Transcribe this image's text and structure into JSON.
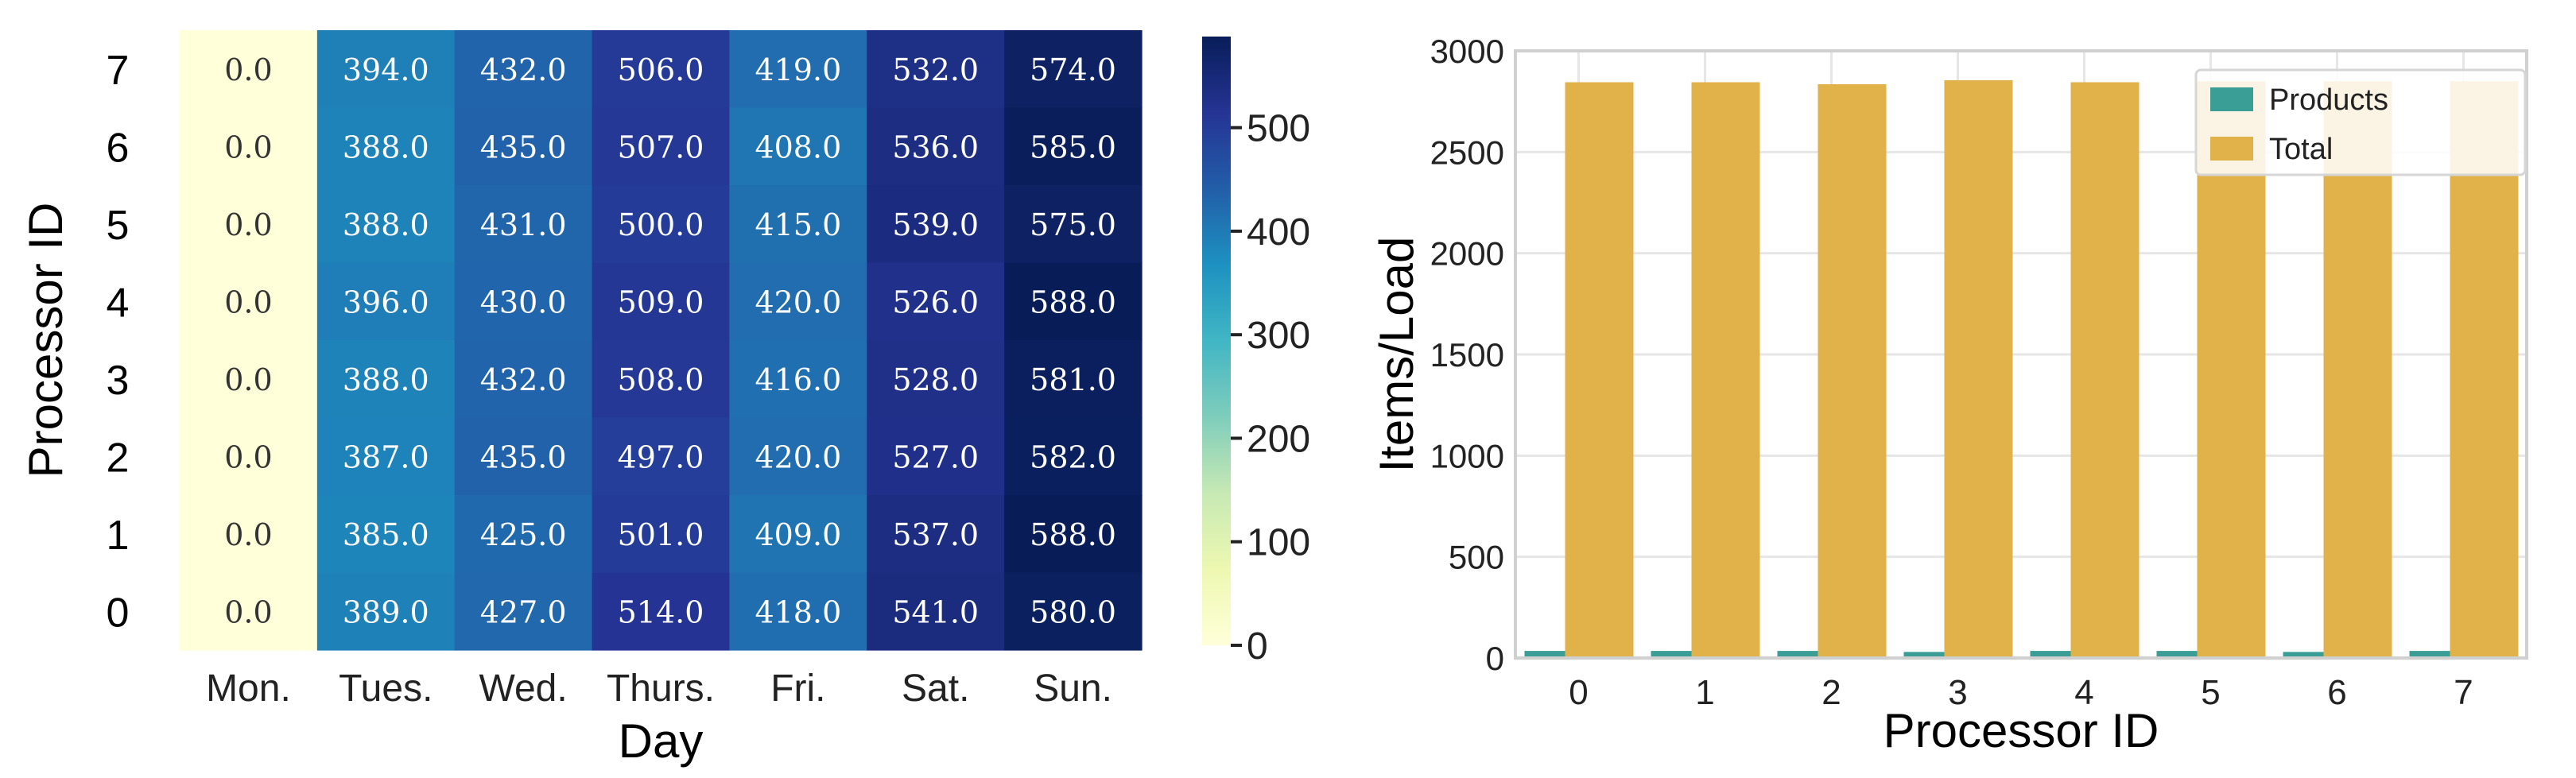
{
  "chart_data": [
    {
      "type": "heatmap",
      "xlabel": "Day",
      "ylabel": "Processor ID",
      "x_categories": [
        "Mon.",
        "Tues.",
        "Wed.",
        "Thurs.",
        "Fri.",
        "Sat.",
        "Sun."
      ],
      "y_categories": [
        "7",
        "6",
        "5",
        "4",
        "3",
        "2",
        "1",
        "0"
      ],
      "values": [
        [
          0.0,
          394.0,
          432.0,
          506.0,
          419.0,
          532.0,
          574.0
        ],
        [
          0.0,
          388.0,
          435.0,
          507.0,
          408.0,
          536.0,
          585.0
        ],
        [
          0.0,
          388.0,
          431.0,
          500.0,
          415.0,
          539.0,
          575.0
        ],
        [
          0.0,
          396.0,
          430.0,
          509.0,
          420.0,
          526.0,
          588.0
        ],
        [
          0.0,
          388.0,
          432.0,
          508.0,
          416.0,
          528.0,
          581.0
        ],
        [
          0.0,
          387.0,
          435.0,
          497.0,
          420.0,
          527.0,
          582.0
        ],
        [
          0.0,
          385.0,
          425.0,
          501.0,
          409.0,
          537.0,
          588.0
        ],
        [
          0.0,
          389.0,
          427.0,
          514.0,
          418.0,
          541.0,
          580.0
        ]
      ],
      "colormap": "YlGnBu",
      "colorbar": {
        "ticks": [
          0,
          100,
          200,
          300,
          400,
          500
        ],
        "range": [
          0,
          588
        ]
      }
    },
    {
      "type": "bar",
      "xlabel": "Processor ID",
      "ylabel": "Items/Load",
      "categories": [
        "0",
        "1",
        "2",
        "3",
        "4",
        "5",
        "6",
        "7"
      ],
      "ylim": [
        0,
        3000
      ],
      "yticks": [
        0,
        500,
        1000,
        1500,
        2000,
        2500,
        3000
      ],
      "grid": true,
      "legend_position": "top-right",
      "series": [
        {
          "name": "Products",
          "color": "#3a9e96",
          "values": [
            35,
            35,
            35,
            30,
            35,
            35,
            30,
            35
          ]
        },
        {
          "name": "Total",
          "color": "#e2b24a",
          "values": [
            2845,
            2845,
            2835,
            2855,
            2845,
            2850,
            2850,
            2850
          ]
        }
      ]
    }
  ]
}
